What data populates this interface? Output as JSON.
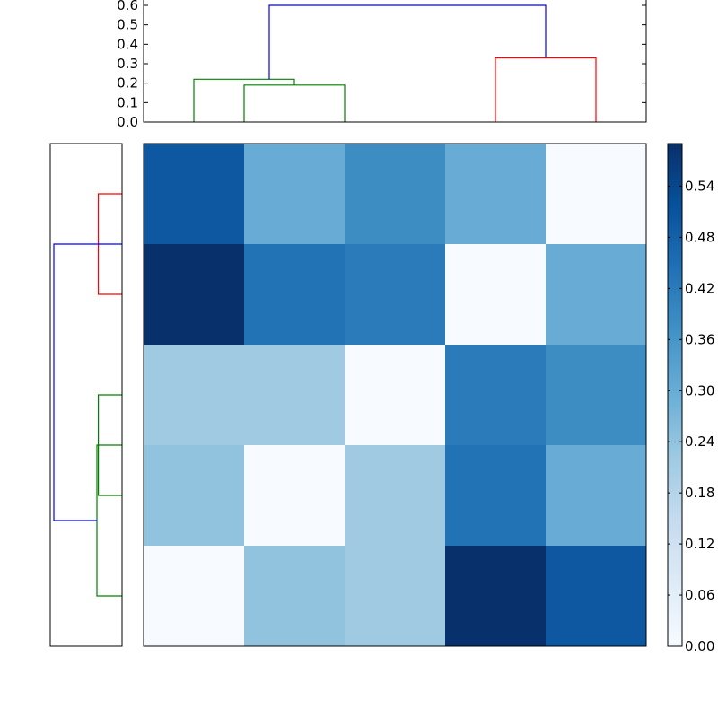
{
  "chart_data": [
    {
      "type": "dendrogram",
      "orientation": "top",
      "ylim": [
        0,
        0.6
      ],
      "yticks": [
        "0.0",
        "0.1",
        "0.2",
        "0.3",
        "0.4",
        "0.5",
        "0.6"
      ],
      "leaf_positions": [
        0.5,
        1.5,
        2.5,
        3.5,
        4.5
      ],
      "links": [
        {
          "x": [
            1.0,
            1.0,
            2.0,
            2.0
          ],
          "y": [
            0.0,
            0.19,
            0.19,
            0.0
          ],
          "color": "#008000"
        },
        {
          "x": [
            0.5,
            0.5,
            1.5,
            1.5
          ],
          "y": [
            0.0,
            0.22,
            0.22,
            0.19
          ],
          "color": "#008000"
        },
        {
          "x": [
            3.5,
            3.5,
            4.5,
            4.5
          ],
          "y": [
            0.0,
            0.33,
            0.33,
            0.0
          ],
          "color": "#ff0000"
        },
        {
          "x": [
            1.25,
            1.25,
            4.0,
            4.0
          ],
          "y": [
            0.22,
            0.6,
            0.6,
            0.33
          ],
          "color": "#0000ff"
        }
      ]
    },
    {
      "type": "dendrogram",
      "orientation": "left",
      "leaf_positions": [
        0.5,
        1.5,
        2.5,
        3.5,
        4.5
      ],
      "links": [
        {
          "y": [
            0.5,
            0.5,
            1.5,
            1.5
          ],
          "d": [
            0.0,
            0.33,
            0.33,
            0.0
          ],
          "color": "#ff0000"
        },
        {
          "y": [
            2.5,
            2.5,
            3.5,
            3.5
          ],
          "d": [
            0.0,
            0.33,
            0.33,
            0.0
          ],
          "color": "#008000"
        },
        {
          "y": [
            3.0,
            3.0,
            4.5,
            4.5
          ],
          "d": [
            0.0,
            0.35,
            0.35,
            0.0
          ],
          "color": "#008000"
        },
        {
          "y": [
            1.0,
            1.0,
            3.75,
            3.75
          ],
          "d": [
            0.0,
            0.95,
            0.95,
            0.35
          ],
          "color": "#0000ff"
        }
      ]
    },
    {
      "type": "heatmap",
      "colormap": "Blues",
      "vmin": 0.0,
      "vmax": 0.59,
      "values": [
        [
          0.5,
          0.3,
          0.38,
          0.3,
          0.0
        ],
        [
          0.59,
          0.44,
          0.42,
          0.0,
          0.3
        ],
        [
          0.22,
          0.22,
          0.0,
          0.42,
          0.38
        ],
        [
          0.24,
          0.0,
          0.22,
          0.44,
          0.3
        ],
        [
          0.0,
          0.24,
          0.22,
          0.59,
          0.5
        ]
      ]
    },
    {
      "type": "colorbar",
      "colormap": "Blues",
      "vmin": 0.0,
      "vmax": 0.59,
      "ticks": [
        "0.00",
        "0.06",
        "0.12",
        "0.18",
        "0.24",
        "0.30",
        "0.36",
        "0.42",
        "0.48",
        "0.54"
      ]
    }
  ],
  "colors": {
    "cmap_stops": [
      "#f7fbff",
      "#deebf7",
      "#c6dbef",
      "#9ecae1",
      "#6baed6",
      "#4292c6",
      "#2171b5",
      "#08519c",
      "#08306b"
    ]
  }
}
